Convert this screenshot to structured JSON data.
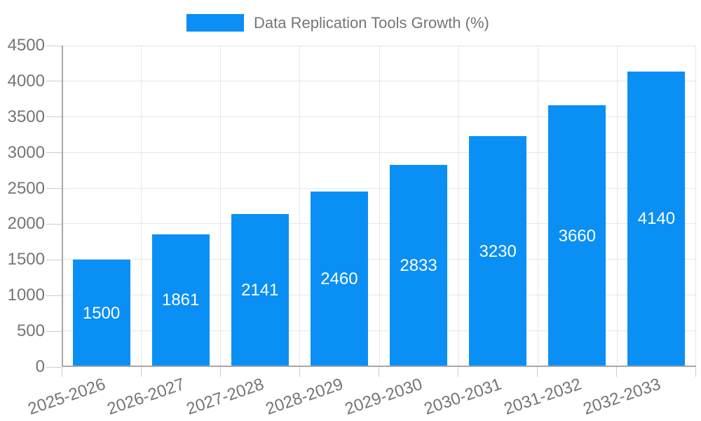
{
  "legend": {
    "label": "Data Replication Tools Growth (%)"
  },
  "chart_data": {
    "type": "bar",
    "title": "Data Replication Tools Growth (%)",
    "series_name": "Data Replication Tools Growth (%)",
    "categories": [
      "2025-2026",
      "2026-2027",
      "2027-2028",
      "2028-2029",
      "2029-2030",
      "2030-2031",
      "2031-2032",
      "2032-2033"
    ],
    "values": [
      1500,
      1861,
      2141,
      2460,
      2833,
      3230,
      3660,
      4140
    ],
    "value_labels": [
      "1500",
      "1861",
      "2141",
      "2460",
      "2833",
      "3230",
      "3660",
      "4140"
    ],
    "xlabel": "",
    "ylabel": "",
    "ylim": [
      0,
      4500
    ],
    "ytick_step": 500,
    "yticks": [
      0,
      500,
      1000,
      1500,
      2000,
      2500,
      3000,
      3500,
      4000,
      4500
    ],
    "grid": true,
    "legend_position": "top-center",
    "colors": {
      "bar": "#0a8ff5",
      "value_label": "#ffffff",
      "axis_text": "#757575",
      "gridline": "#e6e6e6",
      "axis_line": "#a6a6a6",
      "tick_mark": "#cccccc",
      "background": "#ffffff"
    }
  }
}
